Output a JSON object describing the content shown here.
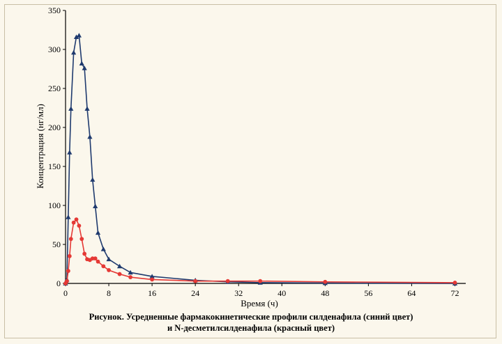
{
  "colors": {
    "background": "#fbf7ec",
    "series_blue": "#1f3a6e",
    "series_red": "#e53935",
    "axis": "#000000",
    "frame": "#c9bfa5"
  },
  "caption": {
    "line1": "Рисунок. Усредненные фармакокинетические профили силденафила (синий цвет)",
    "line2": "и N-десметилсилденафила (красный цвет)"
  },
  "chart_data": {
    "type": "line",
    "title": "",
    "xlabel": "Время (ч)",
    "ylabel": "Концентрация (нг/мл)",
    "xlim": [
      0,
      74
    ],
    "ylim": [
      0,
      350
    ],
    "xticks": [
      0,
      8,
      16,
      24,
      32,
      40,
      48,
      56,
      64,
      72
    ],
    "yticks": [
      0,
      50,
      100,
      150,
      200,
      250,
      300,
      350
    ],
    "grid": false,
    "legend": "none",
    "series": [
      {
        "color": "#1f3a6e",
        "marker": "triangle",
        "points": [
          [
            0,
            0
          ],
          [
            0.25,
            5
          ],
          [
            0.5,
            85
          ],
          [
            0.75,
            168
          ],
          [
            1.0,
            224
          ],
          [
            1.5,
            296
          ],
          [
            2.0,
            316
          ],
          [
            2.5,
            318
          ],
          [
            3.0,
            282
          ],
          [
            3.5,
            276
          ],
          [
            4.0,
            224
          ],
          [
            4.5,
            188
          ],
          [
            5.0,
            133
          ],
          [
            5.5,
            99
          ],
          [
            6.0,
            65
          ],
          [
            7.0,
            44
          ],
          [
            8.0,
            31
          ],
          [
            10.0,
            22
          ],
          [
            12.0,
            14
          ],
          [
            16.0,
            9
          ],
          [
            24.0,
            4
          ],
          [
            30.0,
            2
          ],
          [
            36.0,
            1
          ],
          [
            48.0,
            0.5
          ],
          [
            72.0,
            0
          ]
        ]
      },
      {
        "color": "#e53935",
        "marker": "circle",
        "points": [
          [
            0,
            0
          ],
          [
            0.25,
            3
          ],
          [
            0.5,
            16
          ],
          [
            0.75,
            35
          ],
          [
            1.0,
            57
          ],
          [
            1.5,
            78
          ],
          [
            2.0,
            82
          ],
          [
            2.5,
            74
          ],
          [
            3.0,
            57
          ],
          [
            3.5,
            38
          ],
          [
            4.0,
            31
          ],
          [
            4.5,
            30
          ],
          [
            5.0,
            32
          ],
          [
            5.5,
            32
          ],
          [
            6.0,
            28
          ],
          [
            7.0,
            22
          ],
          [
            8.0,
            17
          ],
          [
            10.0,
            12
          ],
          [
            12.0,
            8
          ],
          [
            16.0,
            5
          ],
          [
            24.0,
            3
          ],
          [
            30.0,
            3
          ],
          [
            36.0,
            3
          ],
          [
            48.0,
            2
          ],
          [
            72.0,
            1
          ]
        ]
      }
    ]
  }
}
